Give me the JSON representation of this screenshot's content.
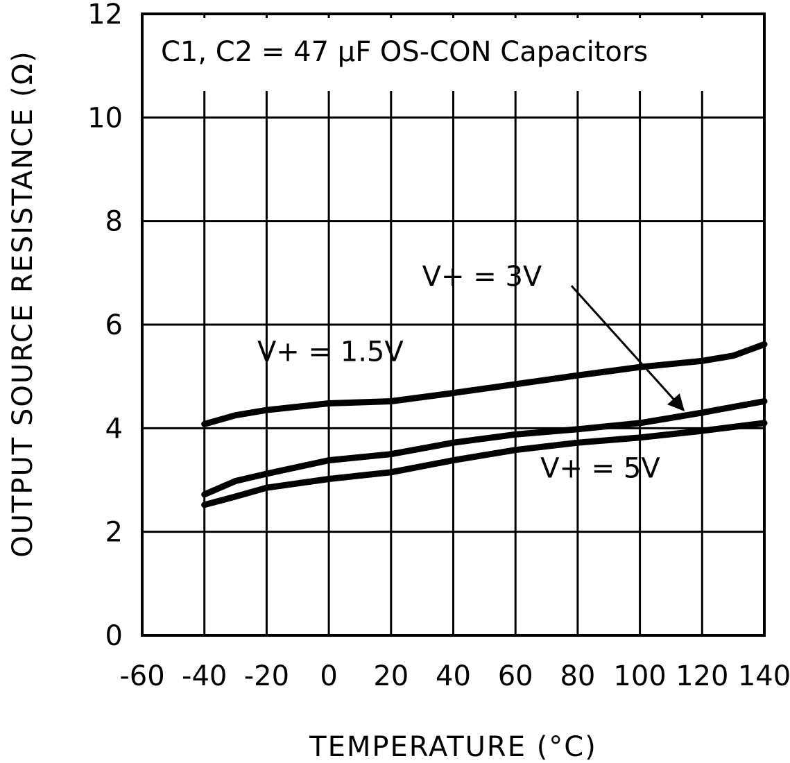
{
  "chart_data": {
    "type": "line",
    "title": "",
    "annotation_box": "C1, C2 = 47 µF OS-CON Capacitors",
    "xlabel": "TEMPERATURE (°C)",
    "ylabel": "OUTPUT SOURCE RESISTANCE (Ω)",
    "xlim": [
      -60,
      140
    ],
    "ylim": [
      0,
      12
    ],
    "xticks": [
      -60,
      -40,
      -20,
      0,
      20,
      40,
      60,
      80,
      100,
      120,
      140
    ],
    "yticks": [
      0,
      2,
      4,
      6,
      8,
      10,
      12
    ],
    "grid": true,
    "legend": "none",
    "series": [
      {
        "name": "V+ = 1.5V",
        "x": [
          -40,
          -30,
          -20,
          0,
          20,
          40,
          60,
          80,
          100,
          120,
          130,
          140
        ],
        "y": [
          4.08,
          4.25,
          4.35,
          4.48,
          4.52,
          4.68,
          4.85,
          5.02,
          5.18,
          5.3,
          5.4,
          5.62
        ]
      },
      {
        "name": "V+ = 3V",
        "x": [
          -40,
          -30,
          -20,
          0,
          20,
          40,
          60,
          80,
          100,
          120,
          140
        ],
        "y": [
          2.72,
          2.98,
          3.12,
          3.38,
          3.5,
          3.72,
          3.88,
          3.98,
          4.1,
          4.3,
          4.52
        ]
      },
      {
        "name": "V+ = 5V",
        "x": [
          -40,
          -30,
          -20,
          0,
          20,
          40,
          60,
          80,
          100,
          120,
          140
        ],
        "y": [
          2.52,
          2.68,
          2.85,
          3.02,
          3.15,
          3.38,
          3.58,
          3.72,
          3.82,
          3.95,
          4.1
        ]
      }
    ],
    "labels": [
      {
        "text": "V+ = 1.5V",
        "x": -23,
        "y": 5.3
      },
      {
        "text": "V+ = 3V",
        "x": 30,
        "y": 6.75
      },
      {
        "text": "V+ = 5V",
        "x": 68,
        "y": 3.05
      }
    ],
    "arrow": {
      "from": [
        78,
        6.75
      ],
      "to": [
        114,
        4.35
      ]
    }
  }
}
